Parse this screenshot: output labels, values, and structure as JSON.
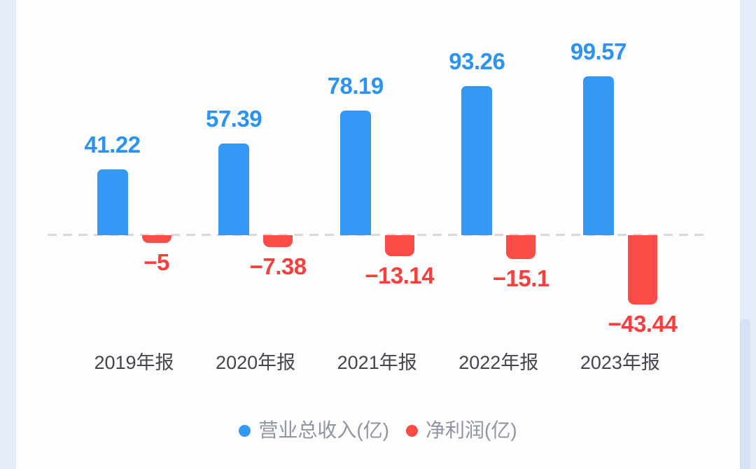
{
  "chart_data": {
    "type": "bar",
    "categories": [
      "2019年报",
      "2020年报",
      "2021年报",
      "2022年报",
      "2023年报"
    ],
    "series": [
      {
        "name": "营业总收入(亿)",
        "color": "#3498f5",
        "values": [
          41.22,
          57.39,
          78.19,
          93.26,
          99.57
        ],
        "labels": [
          "41.22",
          "57.39",
          "78.19",
          "93.26",
          "99.57"
        ]
      },
      {
        "name": "净利润(亿)",
        "color": "#fa4b47",
        "values": [
          -5,
          -7.38,
          -13.14,
          -15.1,
          -43.44
        ],
        "labels": [
          "−5",
          "−7.38",
          "−13.14",
          "−15.1",
          "−43.44"
        ]
      }
    ],
    "title": "",
    "xlabel": "",
    "ylabel": "",
    "baseline": 0,
    "grid": "dashed zero line only",
    "legend_position": "bottom",
    "value_labels_shown": true
  },
  "legend": {
    "items": [
      {
        "label": "营业总收入(亿)",
        "color": "#3498f5"
      },
      {
        "label": "净利润(亿)",
        "color": "#fa4b47"
      }
    ]
  },
  "colors": {
    "revenue_blue": "#3498f5",
    "revenue_label_blue": "#2d93f2",
    "profit_red": "#fa4b47",
    "profit_label_red": "#f83f3b",
    "axis_label": "#43464e",
    "legend_text": "#8f95a3",
    "dashed_line": "#d9d9d9",
    "gutter": "#e4edf9",
    "scrollbar_thumb": "#d6e2f4",
    "background": "#fdfdfd"
  }
}
